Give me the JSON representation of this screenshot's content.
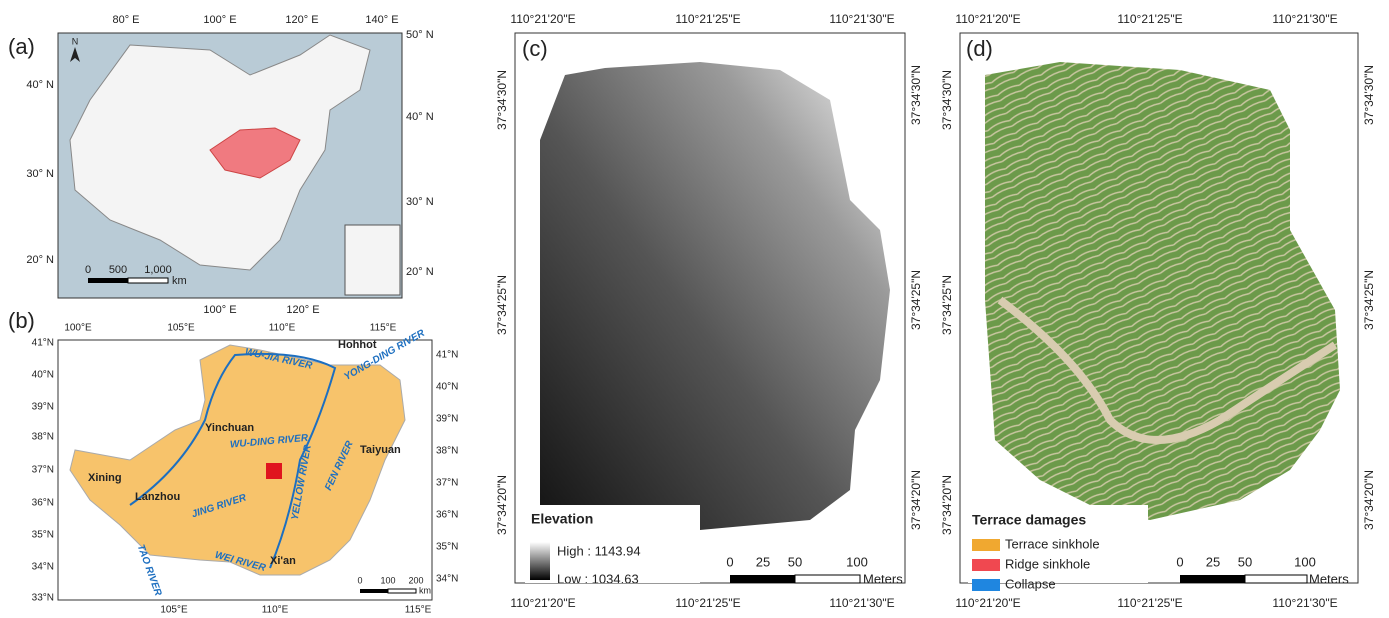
{
  "panels": [
    {
      "label": "(a)",
      "top_ticks": [
        "80° E",
        "100° E",
        "120° E",
        "140° E"
      ],
      "right_ticks": [
        "50° N",
        "40° N",
        "30° N",
        "20° N"
      ],
      "left_ticks": [
        "40° N",
        "30° N",
        "20° N"
      ],
      "bottom_ticks": [
        "100° E",
        "120° E"
      ],
      "north": "N",
      "scale": [
        "0",
        "500",
        "1,000"
      ],
      "scale_unit": "km"
    },
    {
      "label": "(b)",
      "top_ticks": [
        "100°E",
        "105°E",
        "110°E",
        "115°E"
      ],
      "left_ticks": [
        "41°N",
        "40°N",
        "39°N",
        "38°N",
        "37°N",
        "36°N",
        "35°N",
        "34°N",
        "33°N"
      ],
      "right_ticks": [
        "41°N",
        "40°N",
        "39°N",
        "38°N",
        "37°N",
        "36°N",
        "35°N",
        "34°N"
      ],
      "bottom_ticks": [
        "105°E",
        "110°E",
        "115°E"
      ],
      "places": [
        "Hohhot",
        "Yinchuan",
        "Taiyuan",
        "Xining",
        "Lanzhou",
        "Xi'an"
      ],
      "rivers": [
        "WU-JIA RIVER",
        "YONG-DING RIVER",
        "WU-DING RIVER",
        "FEN RIVER",
        "TAO RIVER",
        "JING RIVER",
        "YELLOW RIVER",
        "WEI RIVER"
      ],
      "scale": [
        "0",
        "100",
        "200"
      ],
      "scale_unit": "km"
    },
    {
      "label": "(c)",
      "top_ticks": [
        "110°21'20\"E",
        "110°21'25\"E",
        "110°21'30\"E"
      ],
      "bottom_ticks": [
        "110°21'20\"E",
        "110°21'25\"E",
        "110°21'30\"E"
      ],
      "left_ticks": [
        "37°34'30\"N",
        "37°34'25\"N",
        "37°34'20\"N"
      ],
      "right_ticks": [
        "37°34'30\"N",
        "37°34'25\"N",
        "37°34'20\"N"
      ],
      "legend_title": "Elevation",
      "legend_items": [
        "High : 1143.94",
        "Low : 1034.63"
      ],
      "scale": [
        "0",
        "25",
        "50",
        "100"
      ],
      "scale_unit": "Meters"
    },
    {
      "label": "(d)",
      "top_ticks": [
        "110°21'20\"E",
        "110°21'25\"E",
        "110°21'30\"E"
      ],
      "bottom_ticks": [
        "110°21'20\"E",
        "110°21'25\"E",
        "110°21'30\"E"
      ],
      "left_ticks": [
        "37°34'30\"N",
        "37°34'25\"N",
        "37°34'20\"N"
      ],
      "right_ticks": [
        "37°34'30\"N",
        "37°34'25\"N",
        "37°34'20\"N"
      ],
      "legend_title": "Terrace damages",
      "legend_items": [
        "Terrace sinkhole",
        "Ridge sinkhole",
        "Collapse"
      ],
      "scale": [
        "0",
        "25",
        "50",
        "100"
      ],
      "scale_unit": "Meters"
    }
  ]
}
